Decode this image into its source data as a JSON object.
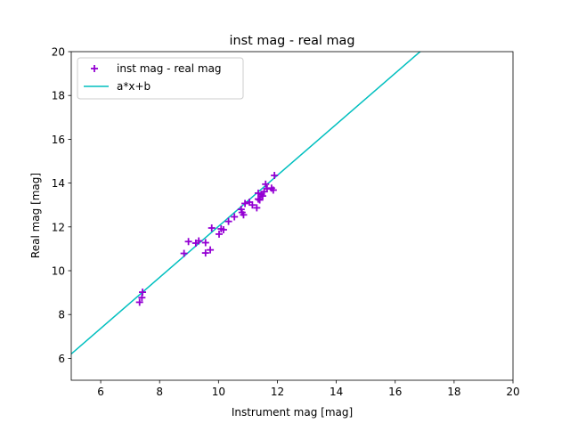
{
  "chart_data": {
    "type": "scatter",
    "title": "inst mag - real mag",
    "xlabel": "Instrument mag [mag]",
    "ylabel": "Real mag [mag]",
    "xlim": [
      5,
      20
    ],
    "ylim": [
      5,
      20
    ],
    "xticks": [
      6,
      8,
      10,
      12,
      14,
      16,
      18,
      20
    ],
    "yticks": [
      6,
      8,
      10,
      12,
      14,
      16,
      18,
      20
    ],
    "grid": false,
    "legend_position": "top-left",
    "series": [
      {
        "name": "inst mag - real mag",
        "kind": "scatter",
        "marker": "+",
        "color": "#9400d3",
        "points": [
          [
            7.32,
            8.56
          ],
          [
            7.4,
            8.77
          ],
          [
            7.42,
            9.02
          ],
          [
            8.83,
            10.79
          ],
          [
            8.98,
            11.33
          ],
          [
            9.23,
            11.26
          ],
          [
            9.33,
            11.36
          ],
          [
            9.56,
            11.28
          ],
          [
            9.56,
            10.81
          ],
          [
            9.72,
            10.95
          ],
          [
            9.77,
            11.95
          ],
          [
            10.02,
            11.67
          ],
          [
            10.09,
            11.91
          ],
          [
            10.17,
            11.87
          ],
          [
            10.34,
            12.25
          ],
          [
            10.54,
            12.46
          ],
          [
            10.8,
            12.66
          ],
          [
            10.85,
            12.55
          ],
          [
            10.77,
            12.8
          ],
          [
            10.9,
            13.07
          ],
          [
            11.05,
            13.13
          ],
          [
            11.15,
            13.0
          ],
          [
            11.3,
            12.87
          ],
          [
            11.35,
            13.27
          ],
          [
            11.35,
            13.54
          ],
          [
            11.45,
            13.48
          ],
          [
            11.55,
            13.61
          ],
          [
            11.6,
            13.95
          ],
          [
            11.65,
            13.74
          ],
          [
            11.8,
            13.77
          ],
          [
            11.86,
            13.68
          ],
          [
            11.9,
            14.35
          ],
          [
            11.4,
            13.23
          ],
          [
            11.5,
            13.41
          ]
        ]
      },
      {
        "name": "a*x+b",
        "kind": "line",
        "color": "#00bfbf",
        "a": 1.165,
        "b": 0.375
      }
    ]
  }
}
